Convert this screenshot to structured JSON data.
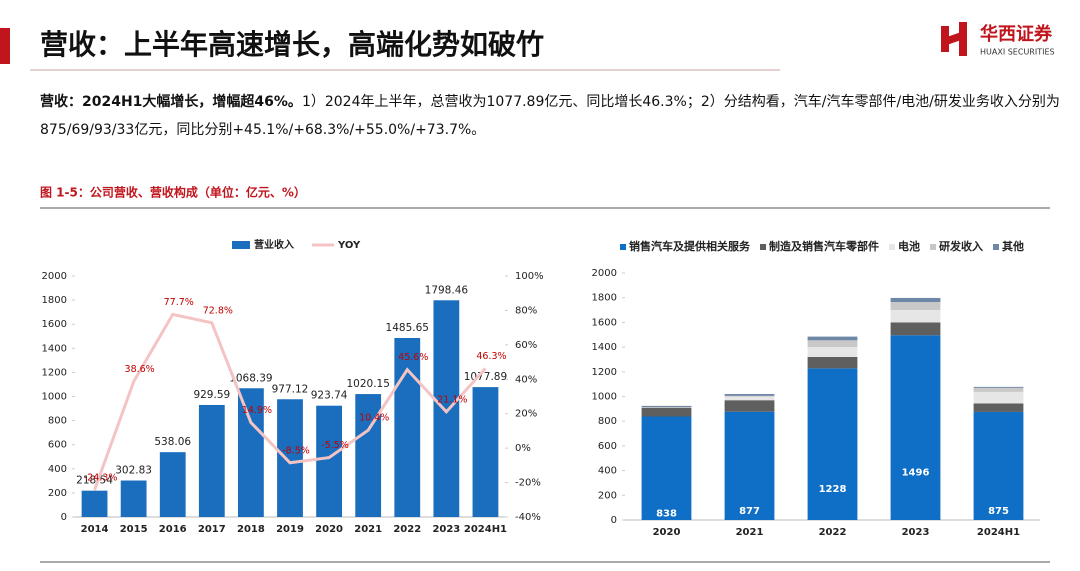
{
  "header": {
    "title": "营收：上半年高速增长，高端化势如破竹"
  },
  "logo": {
    "name": "华西证券",
    "subtitle": "HUAXI SECURITIES"
  },
  "paragraph": {
    "lead": "营收：2024H1大幅增长，增幅超46%。",
    "body": "1）2024年上半年，总营收为1077.89亿元、同比增长46.3%；2）分结构看，汽车/汽车零部件/电池/研发业务收入分别为875/69/93/33亿元，同比分别+45.1%/+68.3%/+55.0%/+73.7%。"
  },
  "figure": {
    "caption": "图 1-5：公司营收、营收构成（单位：亿元、%）"
  },
  "chart_data": [
    {
      "type": "bar-line",
      "categories": [
        "2014",
        "2015",
        "2016",
        "2017",
        "2018",
        "2019",
        "2020",
        "2021",
        "2022",
        "2023",
        "2024H1"
      ],
      "series": [
        {
          "name": "营业收入",
          "color": "#1a6ebd",
          "values": [
            218.54,
            302.83,
            538.06,
            929.59,
            1068.39,
            977.12,
            923.74,
            1020.15,
            1485.65,
            1798.46,
            1077.89
          ]
        },
        {
          "name": "YOY",
          "color": "#f4c4c4",
          "axis": "y2",
          "values": [
            -24.3,
            38.6,
            77.7,
            72.8,
            14.9,
            -8.5,
            -5.5,
            10.4,
            45.6,
            21.1,
            46.3
          ],
          "value_labels": [
            "-24.3%",
            "38.6%",
            "77.7%",
            "72.8%",
            "14.9%",
            "-8.5%",
            "-5.5%",
            "10.4%",
            "45.6%",
            "21.1%",
            "46.3%"
          ]
        }
      ],
      "ylim": [
        0,
        2000
      ],
      "yticks": [
        0,
        200,
        400,
        600,
        800,
        1000,
        1200,
        1400,
        1600,
        1800,
        2000
      ],
      "y2lim": [
        -40,
        100
      ],
      "y2ticks": [
        {
          "value": -40,
          "label": "-40%"
        },
        {
          "value": -20,
          "label": "-20%"
        },
        {
          "value": 0,
          "label": "0%"
        },
        {
          "value": 20,
          "label": "20%"
        },
        {
          "value": 40,
          "label": "40%"
        },
        {
          "value": 60,
          "label": "60%"
        },
        {
          "value": 80,
          "label": "80%"
        },
        {
          "value": 100,
          "label": "100%"
        }
      ],
      "legend": "top"
    },
    {
      "type": "stacked-bar",
      "categories": [
        "2020",
        "2021",
        "2022",
        "2023",
        "2024H1"
      ],
      "series": [
        {
          "name": "销售汽车及提供相关服务",
          "color": "#0f6fc6",
          "values": [
            838,
            877,
            1228,
            1496,
            875
          ]
        },
        {
          "name": "制造及销售汽车零部件",
          "color": "#5f5f5f",
          "values": [
            72,
            93,
            92,
            104,
            69
          ]
        },
        {
          "name": "电池",
          "color": "#e6e6e6",
          "values": [
            5,
            30,
            80,
            100,
            93
          ]
        },
        {
          "name": "研发收入",
          "color": "#c8c8c8",
          "values": [
            0,
            5,
            55,
            65,
            33
          ]
        },
        {
          "name": "其他",
          "color": "#6f87a6",
          "values": [
            9,
            15,
            30,
            33,
            8
          ]
        }
      ],
      "ylim": [
        0,
        2000
      ],
      "yticks": [
        0,
        200,
        400,
        600,
        800,
        1000,
        1200,
        1400,
        1600,
        1800,
        2000
      ],
      "legend": "top"
    }
  ]
}
